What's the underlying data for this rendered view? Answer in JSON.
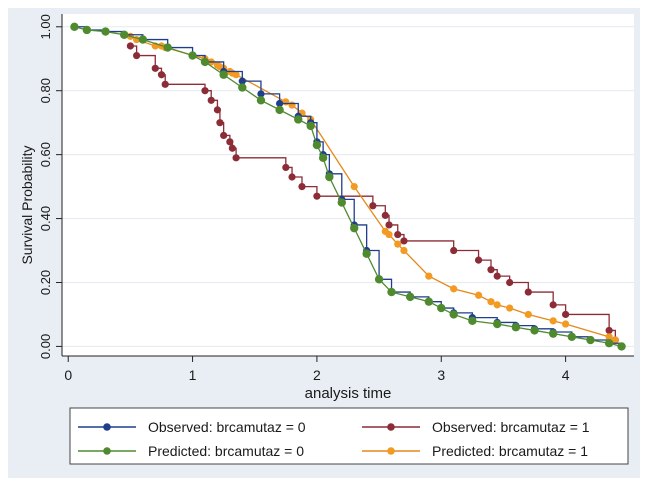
{
  "chart_data": {
    "type": "line",
    "title": "",
    "xlabel": "analysis time",
    "ylabel": "Survival Probability",
    "xlim": [
      -0.05,
      4.55
    ],
    "ylim": [
      -0.03,
      1.04
    ],
    "x_ticks": [
      0,
      1,
      2,
      3,
      4
    ],
    "x_tick_labels": [
      "0",
      "1",
      "2",
      "3",
      "4"
    ],
    "y_ticks": [
      0,
      0.2,
      0.4,
      0.6,
      0.8,
      1.0
    ],
    "y_tick_labels": [
      "0.00",
      "0.20",
      "0.40",
      "0.60",
      "0.80",
      "1.00"
    ],
    "grid": "horizontal",
    "legend_position": "bottom",
    "series": [
      {
        "name": "Observed: brcamutaz = 0",
        "style": "step",
        "color": "#1f3e8c",
        "marker_color": "#1f3e8c",
        "points": [
          [
            0.05,
            1.0
          ],
          [
            0.15,
            0.99
          ],
          [
            0.3,
            0.985
          ],
          [
            0.45,
            0.975
          ],
          [
            0.6,
            0.96
          ],
          [
            0.8,
            0.935
          ],
          [
            1.0,
            0.91
          ],
          [
            1.1,
            0.89
          ],
          [
            1.25,
            0.86
          ],
          [
            1.4,
            0.83
          ],
          [
            1.55,
            0.79
          ],
          [
            1.7,
            0.76
          ],
          [
            1.85,
            0.72
          ],
          [
            1.95,
            0.7
          ],
          [
            2.0,
            0.64
          ],
          [
            2.05,
            0.6
          ],
          [
            2.1,
            0.54
          ],
          [
            2.2,
            0.46
          ],
          [
            2.3,
            0.38
          ],
          [
            2.4,
            0.3
          ],
          [
            2.5,
            0.21
          ],
          [
            2.6,
            0.17
          ],
          [
            2.75,
            0.155
          ],
          [
            2.9,
            0.14
          ],
          [
            3.0,
            0.12
          ],
          [
            3.1,
            0.105
          ],
          [
            3.25,
            0.09
          ],
          [
            3.45,
            0.075
          ],
          [
            3.6,
            0.065
          ],
          [
            3.75,
            0.055
          ],
          [
            3.9,
            0.045
          ],
          [
            4.05,
            0.03
          ],
          [
            4.2,
            0.02
          ],
          [
            4.35,
            0.01
          ],
          [
            4.45,
            0.0
          ]
        ]
      },
      {
        "name": "Observed: brcamutaz = 1",
        "style": "step",
        "color": "#8c2c36",
        "marker_color": "#8c2c36",
        "points": [
          [
            0.5,
            0.94
          ],
          [
            0.55,
            0.91
          ],
          [
            0.7,
            0.87
          ],
          [
            0.75,
            0.85
          ],
          [
            0.78,
            0.82
          ],
          [
            1.1,
            0.8
          ],
          [
            1.15,
            0.77
          ],
          [
            1.2,
            0.74
          ],
          [
            1.22,
            0.7
          ],
          [
            1.25,
            0.66
          ],
          [
            1.3,
            0.64
          ],
          [
            1.32,
            0.62
          ],
          [
            1.35,
            0.59
          ],
          [
            1.75,
            0.56
          ],
          [
            1.8,
            0.53
          ],
          [
            1.88,
            0.5
          ],
          [
            2.0,
            0.47
          ],
          [
            2.45,
            0.44
          ],
          [
            2.55,
            0.41
          ],
          [
            2.58,
            0.38
          ],
          [
            2.65,
            0.35
          ],
          [
            2.7,
            0.33
          ],
          [
            3.1,
            0.3
          ],
          [
            3.3,
            0.27
          ],
          [
            3.4,
            0.24
          ],
          [
            3.45,
            0.22
          ],
          [
            3.55,
            0.2
          ],
          [
            3.7,
            0.17
          ],
          [
            3.9,
            0.13
          ],
          [
            4.0,
            0.1
          ],
          [
            4.35,
            0.05
          ],
          [
            4.4,
            0.02
          ]
        ]
      },
      {
        "name": "Predicted: brcamutaz = 0",
        "style": "line",
        "color": "#4f8a2f",
        "marker_color": "#4f8a2f",
        "points": [
          [
            0.05,
            1.0
          ],
          [
            0.15,
            0.99
          ],
          [
            0.3,
            0.985
          ],
          [
            0.45,
            0.975
          ],
          [
            0.6,
            0.96
          ],
          [
            0.8,
            0.935
          ],
          [
            1.0,
            0.91
          ],
          [
            1.1,
            0.89
          ],
          [
            1.25,
            0.85
          ],
          [
            1.4,
            0.81
          ],
          [
            1.55,
            0.77
          ],
          [
            1.7,
            0.74
          ],
          [
            1.85,
            0.71
          ],
          [
            1.95,
            0.69
          ],
          [
            2.0,
            0.63
          ],
          [
            2.05,
            0.59
          ],
          [
            2.1,
            0.53
          ],
          [
            2.2,
            0.45
          ],
          [
            2.3,
            0.37
          ],
          [
            2.4,
            0.29
          ],
          [
            2.5,
            0.21
          ],
          [
            2.6,
            0.17
          ],
          [
            2.75,
            0.155
          ],
          [
            2.9,
            0.14
          ],
          [
            3.0,
            0.12
          ],
          [
            3.1,
            0.1
          ],
          [
            3.25,
            0.08
          ],
          [
            3.45,
            0.07
          ],
          [
            3.6,
            0.06
          ],
          [
            3.75,
            0.05
          ],
          [
            3.9,
            0.04
          ],
          [
            4.05,
            0.03
          ],
          [
            4.2,
            0.02
          ],
          [
            4.35,
            0.01
          ],
          [
            4.45,
            0.0
          ]
        ]
      },
      {
        "name": "Predicted: brcamutaz = 1",
        "style": "line",
        "color": "#e6881a",
        "marker_color": "#f29a22",
        "points": [
          [
            0.5,
            0.97
          ],
          [
            0.55,
            0.96
          ],
          [
            0.7,
            0.94
          ],
          [
            0.75,
            0.94
          ],
          [
            0.78,
            0.935
          ],
          [
            1.1,
            0.9
          ],
          [
            1.15,
            0.89
          ],
          [
            1.2,
            0.88
          ],
          [
            1.22,
            0.875
          ],
          [
            1.25,
            0.87
          ],
          [
            1.3,
            0.86
          ],
          [
            1.32,
            0.855
          ],
          [
            1.35,
            0.85
          ],
          [
            1.75,
            0.765
          ],
          [
            1.8,
            0.755
          ],
          [
            1.88,
            0.73
          ],
          [
            1.95,
            0.71
          ],
          [
            2.3,
            0.5
          ],
          [
            2.55,
            0.36
          ],
          [
            2.58,
            0.35
          ],
          [
            2.65,
            0.32
          ],
          [
            2.7,
            0.3
          ],
          [
            2.9,
            0.22
          ],
          [
            3.1,
            0.18
          ],
          [
            3.3,
            0.16
          ],
          [
            3.4,
            0.14
          ],
          [
            3.45,
            0.13
          ],
          [
            3.55,
            0.12
          ],
          [
            3.7,
            0.1
          ],
          [
            3.9,
            0.08
          ],
          [
            4.0,
            0.07
          ],
          [
            4.35,
            0.03
          ],
          [
            4.4,
            0.02
          ]
        ]
      }
    ]
  }
}
